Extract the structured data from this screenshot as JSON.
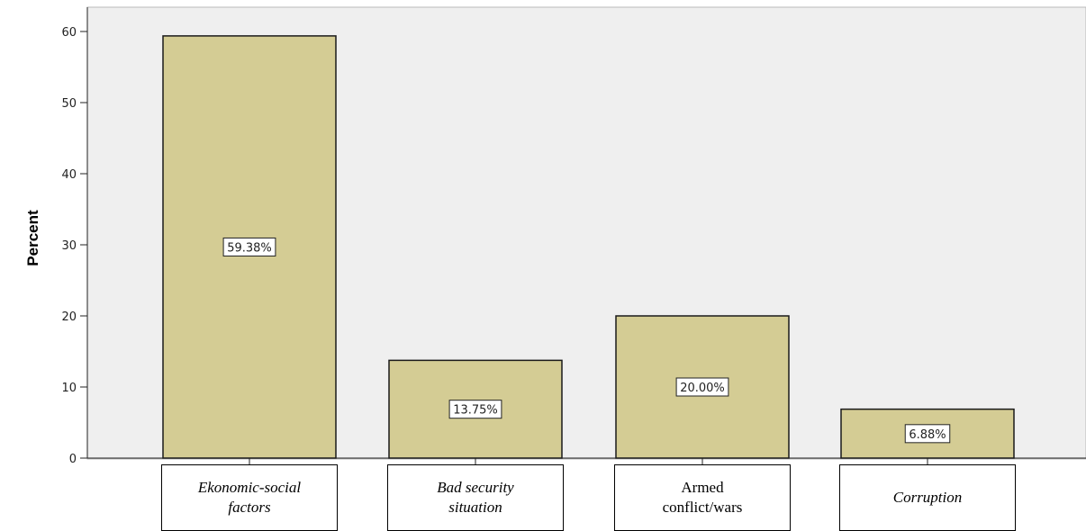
{
  "chart_data": {
    "type": "bar",
    "title": "",
    "xlabel": "",
    "ylabel": "Percent",
    "ylim": [
      0,
      60
    ],
    "yticks": [
      0,
      10,
      20,
      30,
      40,
      50,
      60
    ],
    "grid": false,
    "categories": [
      "Ekonomic-social\nfactors",
      "Bad security\nsituation",
      "Armed\nconflict/wars",
      "Corruption"
    ],
    "category_italic": [
      true,
      true,
      false,
      true
    ],
    "values": [
      59.38,
      13.75,
      20.0,
      6.88
    ],
    "data_labels": [
      "59.38%",
      "13.75%",
      "20.00%",
      "6.88%"
    ],
    "colors": {
      "plot_background": "#efefef",
      "bar_fill": "#d4cc94",
      "bar_stroke": "#1a1a1a"
    }
  }
}
